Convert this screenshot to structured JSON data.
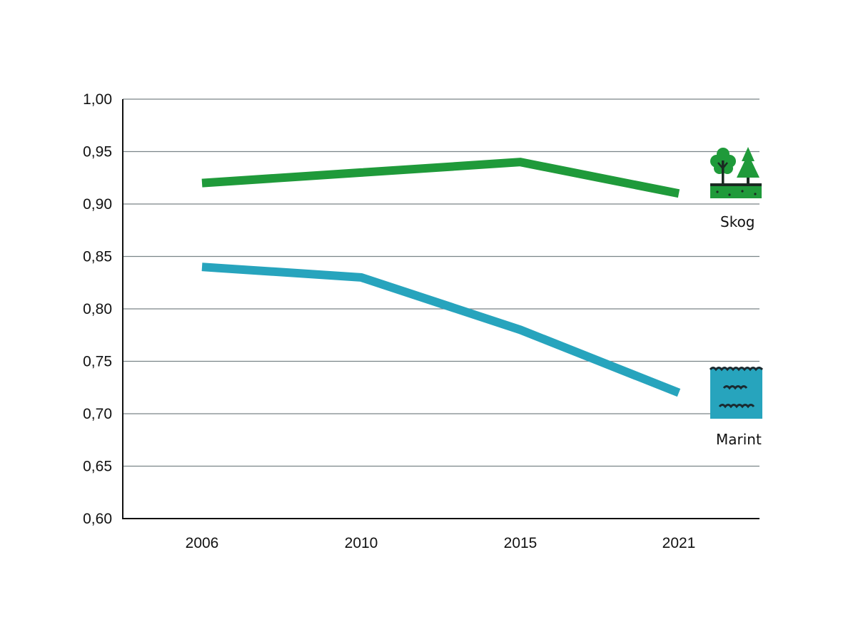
{
  "chart_data": {
    "type": "line",
    "title": "",
    "xlabel": "",
    "ylabel": "",
    "categories": [
      "2006",
      "2010",
      "2015",
      "2021"
    ],
    "ylim": [
      0.6,
      1.0
    ],
    "yticks": [
      "0,60",
      "0,65",
      "0,70",
      "0,75",
      "0,80",
      "0,85",
      "0,90",
      "0,95",
      "1,00"
    ],
    "ytick_values": [
      0.6,
      0.65,
      0.7,
      0.75,
      0.8,
      0.85,
      0.9,
      0.95,
      1.0
    ],
    "grid": true,
    "series": [
      {
        "name": "Skog",
        "color": "#1f9a3a",
        "icon": "forest-icon",
        "values": [
          0.92,
          0.93,
          0.94,
          0.91
        ]
      },
      {
        "name": "Marint",
        "color": "#27a4bd",
        "icon": "marine-water-icon",
        "values": [
          0.84,
          0.83,
          0.78,
          0.72
        ]
      }
    ],
    "legend": "right, inline labels with icons"
  }
}
